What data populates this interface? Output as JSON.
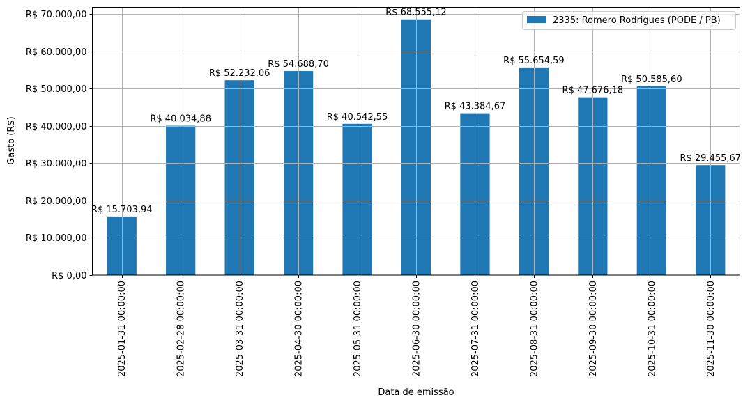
{
  "chart_data": {
    "type": "bar",
    "title": "",
    "xlabel": "Data de emissão",
    "ylabel": "Gasto (R$)",
    "ylim": [
      0,
      72000
    ],
    "yticks": [
      0,
      10000,
      20000,
      30000,
      40000,
      50000,
      60000,
      70000
    ],
    "ytick_labels": [
      "R$ 0,00",
      "R$ 10.000,00",
      "R$ 20.000,00",
      "R$ 30.000,00",
      "R$ 40.000,00",
      "R$ 50.000,00",
      "R$ 60.000,00",
      "R$ 70.000,00"
    ],
    "grid": true,
    "legend_position": "upper right",
    "categories": [
      "2025-01-31 00:00:00",
      "2025-02-28 00:00:00",
      "2025-03-31 00:00:00",
      "2025-04-30 00:00:00",
      "2025-05-31 00:00:00",
      "2025-06-30 00:00:00",
      "2025-07-31 00:00:00",
      "2025-08-31 00:00:00",
      "2025-09-30 00:00:00",
      "2025-10-31 00:00:00",
      "2025-11-30 00:00:00"
    ],
    "series": [
      {
        "name": "2335: Romero Rodrigues (PODE / PB)",
        "color": "#1f77b4",
        "values": [
          15703.94,
          40034.88,
          52232.06,
          54688.7,
          40542.55,
          68555.12,
          43384.67,
          55654.59,
          47676.18,
          50585.6,
          29455.67
        ],
        "labels": [
          "R$ 15.703,94",
          "R$ 40.034,88",
          "R$ 52.232,06",
          "R$ 54.688,70",
          "R$ 40.542,55",
          "R$ 68.555,12",
          "R$ 43.384,67",
          "R$ 55.654,59",
          "R$ 47.676,18",
          "R$ 50.585,60",
          "R$ 29.455,67"
        ]
      }
    ]
  }
}
